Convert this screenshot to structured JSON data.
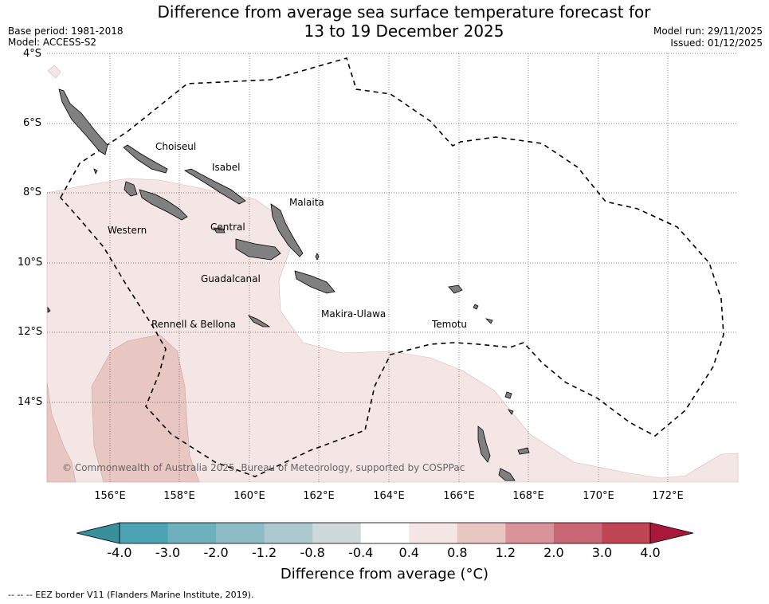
{
  "title": {
    "line1": "Difference from average sea surface temperature forecast for",
    "line2": "13 to 19 December 2025"
  },
  "meta": {
    "base_period": "Base period: 1981-2018",
    "model": "Model: ACCESS-S2",
    "model_run": "Model run: 29/11/2025",
    "issued": "Issued: 01/12/2025"
  },
  "axes": {
    "lat_labels": [
      "4°S",
      "6°S",
      "8°S",
      "10°S",
      "12°S",
      "14°S"
    ],
    "lon_labels": [
      "156°E",
      "158°E",
      "160°E",
      "162°E",
      "164°E",
      "166°E",
      "168°E",
      "170°E",
      "172°E"
    ]
  },
  "regions": [
    {
      "name": "Choiseul"
    },
    {
      "name": "Isabel"
    },
    {
      "name": "Malaita"
    },
    {
      "name": "Western"
    },
    {
      "name": "Central"
    },
    {
      "name": "Guadalcanal"
    },
    {
      "name": "Makira-Ulawa"
    },
    {
      "name": "Rennell & Bellona"
    },
    {
      "name": "Temotu"
    }
  ],
  "copyright": "© Commonwealth of Australia 2025, Bureau of Meteorology, supported by COSPPac",
  "colorbar": {
    "ticks": [
      "-4.0",
      "-3.0",
      "-2.0",
      "-1.2",
      "-0.8",
      "-0.4",
      "0.4",
      "0.8",
      "1.2",
      "2.0",
      "3.0",
      "4.0"
    ],
    "colors": [
      "#3a8f9c",
      "#4ba3b4",
      "#6fb0bf",
      "#8dbcc6",
      "#abc9ce",
      "#ced9dc",
      "#ffffff",
      "#f4e6e4",
      "#e8c6c2",
      "#d8939b",
      "#c96874",
      "#bf4654",
      "#a9173a"
    ],
    "label": "Difference from average (°C)"
  },
  "footnote": "--  --  -- EEZ border V11 (Flanders Marine Institute, 2019).",
  "colors": {
    "land": "#808080",
    "anomaly_light": "#f4e6e4",
    "anomaly_medium": "#e8c6c2"
  }
}
